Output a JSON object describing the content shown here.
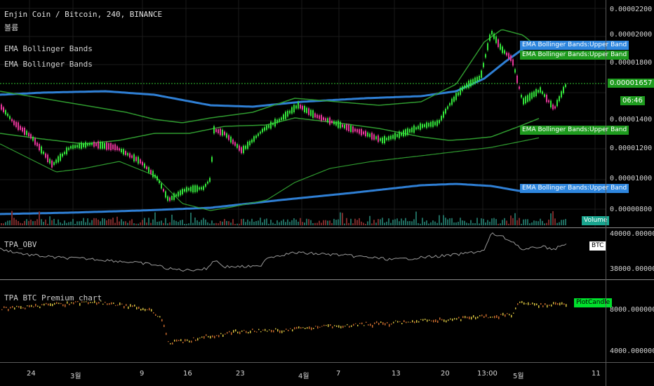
{
  "header": {
    "title": "Enjin Coin / Bitcoin, 240, BINANCE",
    "sub_label": "볼륨",
    "indicator1": "EMA Bollinger Bands",
    "indicator2": "EMA Bollinger Bands"
  },
  "price_axis": [
    "0.00002200",
    "0.00002000",
    "0.00001800",
    "0.00001400",
    "0.00001200",
    "0.00001000",
    "0.00000800"
  ],
  "price_tags": {
    "upper_band_top": "EMA Bollinger Bands:Upper Band",
    "upper_band_green1": "EMA Bollinger Bands:Upper Band",
    "current_price": "0.00001657",
    "countdown": "06:46",
    "upper_band_green2": "EMA Bollinger Bands:Upper Band",
    "upper_band_blue2": "EMA Bollinger Bands:Upper Band",
    "volume": "Volume"
  },
  "obv_pane": {
    "label": "TPA_OBV",
    "axis": [
      "40000.00000000",
      "38000.00000000"
    ],
    "tag": "BTC"
  },
  "premium_pane": {
    "label": "TPA BTC Premium chart",
    "axis": [
      "8000.00000000",
      "4000.00000000"
    ],
    "tag": "PlotCandle"
  },
  "time_axis": [
    "24",
    "3월",
    "9",
    "16",
    "23",
    "4월",
    "7",
    "13",
    "20",
    "13:00",
    "5월",
    "11"
  ],
  "colors": {
    "bull": "#33e23a",
    "bear": "#e6369a",
    "blue_band": "#2f7fd4",
    "green_band": "#2f9a2f",
    "tag_blue": "#2e86de",
    "tag_green": "#1e9b1e"
  }
}
